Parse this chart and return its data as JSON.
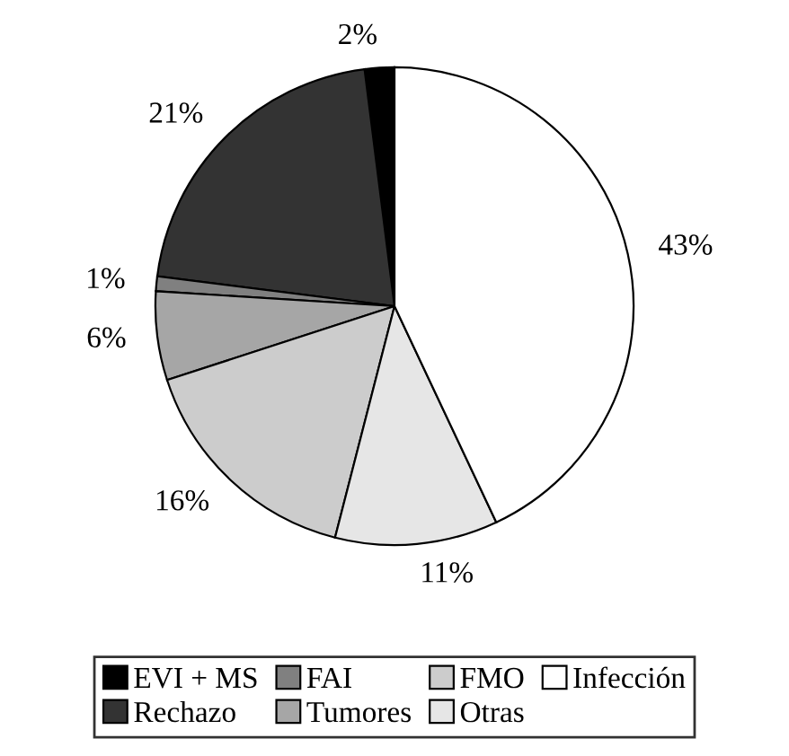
{
  "chart_data": {
    "type": "pie",
    "categories": [
      "EVI + MS",
      "Rechazo",
      "FAI",
      "Tumores",
      "FMO",
      "Otras",
      "Infección"
    ],
    "values": [
      2,
      21,
      1,
      6,
      16,
      11,
      43
    ],
    "value_labels": [
      "2%",
      "21%",
      "1%",
      "6%",
      "16%",
      "11%",
      "43%"
    ],
    "colors": [
      "#000000",
      "#333333",
      "#808080",
      "#a6a6a6",
      "#cccccc",
      "#e6e6e6",
      "#ffffff"
    ],
    "legend": "bottom"
  }
}
